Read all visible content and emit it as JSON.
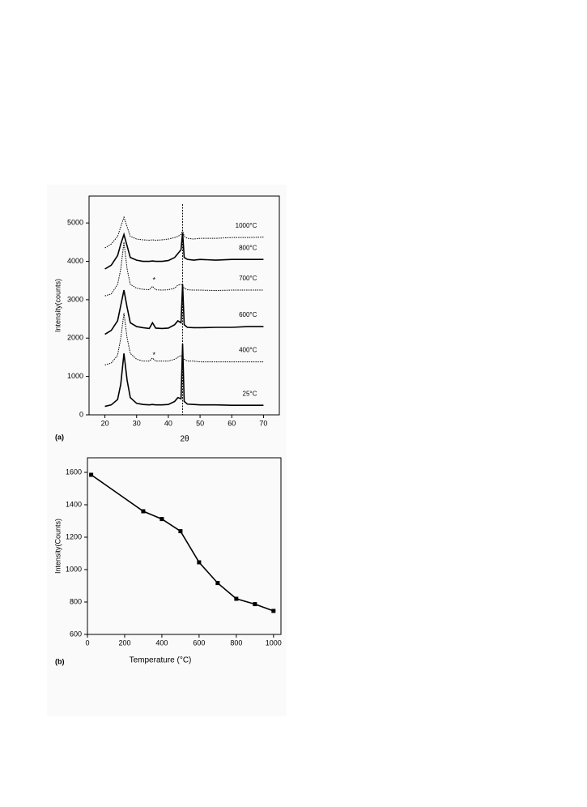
{
  "chart_data": [
    {
      "type": "line",
      "panel_label": "(a)",
      "x_label": "2θ",
      "y_label": "Intensity(counts)",
      "xlim": [
        15,
        75
      ],
      "ylim": [
        0,
        5700
      ],
      "xticks": [
        20,
        30,
        40,
        50,
        60,
        70
      ],
      "yticks": [
        0,
        1000,
        2000,
        3000,
        4000,
        5000
      ],
      "vline": 44.5,
      "markers": [
        {
          "x": 35.5,
          "y": 3500,
          "label": "*"
        },
        {
          "x": 35.5,
          "y": 1550,
          "label": "*"
        }
      ],
      "x": [
        20,
        22,
        24,
        25,
        26,
        27,
        28,
        30,
        32,
        34,
        35,
        36,
        38,
        40,
        42,
        43,
        44,
        44.5,
        45,
        46,
        48,
        50,
        55,
        60,
        65,
        70
      ],
      "series": [
        {
          "name": "25°C",
          "color": "#000000",
          "style": "solid",
          "values": [
            220,
            260,
            400,
            800,
            1600,
            900,
            450,
            300,
            270,
            260,
            270,
            260,
            260,
            270,
            350,
            450,
            420,
            1850,
            350,
            280,
            270,
            260,
            260,
            250,
            250,
            250
          ]
        },
        {
          "name": "400°C",
          "color": "#000000",
          "style": "dotted",
          "values": [
            1300,
            1350,
            1550,
            2000,
            2650,
            2000,
            1600,
            1450,
            1400,
            1400,
            1480,
            1400,
            1400,
            1400,
            1450,
            1500,
            1550,
            1500,
            1450,
            1400,
            1400,
            1380,
            1380,
            1380,
            1380,
            1380
          ]
        },
        {
          "name": "600°C",
          "color": "#000000",
          "style": "solid",
          "values": [
            2100,
            2200,
            2450,
            2850,
            3250,
            2800,
            2400,
            2300,
            2270,
            2250,
            2400,
            2260,
            2250,
            2260,
            2350,
            2450,
            2400,
            3400,
            2350,
            2280,
            2270,
            2270,
            2280,
            2280,
            2300,
            2300
          ]
        },
        {
          "name": "700°C",
          "color": "#000000",
          "style": "dotted",
          "values": [
            3100,
            3150,
            3400,
            3800,
            4500,
            3800,
            3400,
            3300,
            3270,
            3260,
            3350,
            3260,
            3250,
            3260,
            3300,
            3380,
            3400,
            3350,
            3300,
            3260,
            3250,
            3250,
            3240,
            3250,
            3250,
            3250
          ]
        },
        {
          "name": "800°C",
          "color": "#000000",
          "style": "solid",
          "values": [
            3800,
            3900,
            4150,
            4450,
            4700,
            4400,
            4100,
            4030,
            4000,
            4000,
            4010,
            4000,
            4000,
            4020,
            4100,
            4200,
            4300,
            4750,
            4100,
            4050,
            4030,
            4050,
            4030,
            4050,
            4050,
            4050
          ]
        },
        {
          "name": "1000°C",
          "color": "#000000",
          "style": "dotted",
          "values": [
            4350,
            4450,
            4650,
            4900,
            5150,
            4900,
            4650,
            4580,
            4560,
            4550,
            4560,
            4550,
            4560,
            4580,
            4620,
            4650,
            4700,
            4800,
            4650,
            4600,
            4580,
            4600,
            4600,
            4620,
            4620,
            4630
          ]
        }
      ]
    },
    {
      "type": "line",
      "panel_label": "(b)",
      "x_label": "Temperature (°C)",
      "y_label": "Intensity(Counts)",
      "xlim": [
        0,
        1040
      ],
      "ylim": [
        600,
        1690
      ],
      "xticks": [
        0,
        200,
        400,
        600,
        800,
        1000
      ],
      "yticks": [
        600,
        800,
        1000,
        1200,
        1400,
        1600
      ],
      "x": [
        20,
        300,
        400,
        500,
        600,
        700,
        800,
        900,
        1000
      ],
      "series": [
        {
          "color": "#000000",
          "style": "solid",
          "point_markers": true,
          "values": [
            1585,
            1360,
            1312,
            1237,
            1045,
            917,
            820,
            787,
            745
          ]
        }
      ]
    }
  ]
}
